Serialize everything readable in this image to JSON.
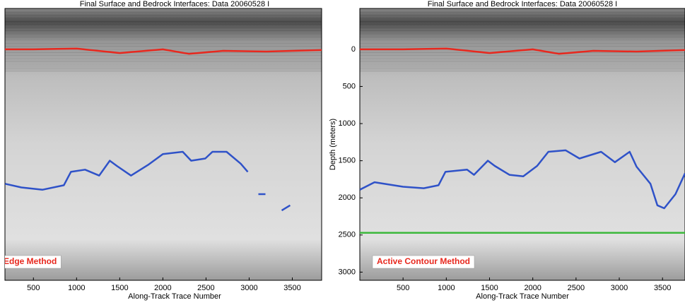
{
  "chart_data": [
    {
      "type": "line",
      "title": "Final Surface and Bedrock Interfaces: Data 20060528 I",
      "xlabel": "Along-Track Trace Number",
      "annotation": "Edge Method",
      "xlim": [
        170,
        3840
      ],
      "xticks": [
        500,
        1000,
        1500,
        2000,
        2500,
        3000,
        3500
      ],
      "ylim": [
        -550,
        3110
      ],
      "y_inverted": true,
      "series": [
        {
          "color": "#e8281e",
          "x": [
            170,
            500,
            1000,
            1500,
            2000,
            2300,
            2700,
            3200,
            3840
          ],
          "values": [
            0,
            0,
            -10,
            50,
            0,
            60,
            20,
            30,
            10
          ]
        },
        {
          "color": "#2f52c8",
          "x": [
            172,
            361,
            607,
            852,
            934,
            1098,
            1262,
            1385,
            1467,
            1631,
            1836,
            2000,
            2230,
            2328,
            2492,
            2574,
            2738,
            2902,
            2984,
            3050,
            3107,
            3189,
            3250,
            3377,
            3475
          ],
          "values": [
            1810,
            1860,
            1890,
            1830,
            1650,
            1620,
            1700,
            1500,
            1570,
            1700,
            1550,
            1410,
            1380,
            1500,
            1470,
            1380,
            1380,
            1540,
            1650,
            null,
            1950,
            1950,
            null,
            2170,
            2100
          ]
        }
      ]
    },
    {
      "type": "line",
      "title": "Final Surface and Bedrock Interfaces: Data 20060528 I",
      "xlabel": "Along-Track Trace Number",
      "ylabel": "Depth (meters)",
      "annotation": "Active Contour Method",
      "xlim": [
        0,
        3760
      ],
      "xticks": [
        500,
        1000,
        1500,
        2000,
        2500,
        3000,
        3500
      ],
      "ylim": [
        -550,
        3110
      ],
      "yticks": [
        0,
        500,
        1000,
        1500,
        2000,
        2500,
        3000
      ],
      "y_inverted": true,
      "series": [
        {
          "color": "#e8281e",
          "x": [
            0,
            500,
            1000,
            1500,
            2000,
            2300,
            2700,
            3200,
            3760
          ],
          "values": [
            0,
            0,
            -10,
            50,
            0,
            60,
            20,
            30,
            10
          ]
        },
        {
          "color": "#2f52c8",
          "x": [
            0,
            170,
            500,
            740,
            910,
            990,
            1240,
            1320,
            1480,
            1560,
            1730,
            1890,
            2050,
            2180,
            2380,
            2540,
            2790,
            2950,
            3120,
            3200,
            3360,
            3440,
            3520,
            3650,
            3760
          ],
          "values": [
            1890,
            1790,
            1850,
            1870,
            1830,
            1650,
            1620,
            1690,
            1500,
            1570,
            1690,
            1710,
            1570,
            1380,
            1360,
            1470,
            1380,
            1520,
            1380,
            1580,
            1810,
            2100,
            2140,
            1950,
            1670
          ]
        },
        {
          "color": "#3cb83c",
          "x": [
            0,
            3760
          ],
          "values": [
            2470,
            2470
          ]
        }
      ]
    }
  ]
}
